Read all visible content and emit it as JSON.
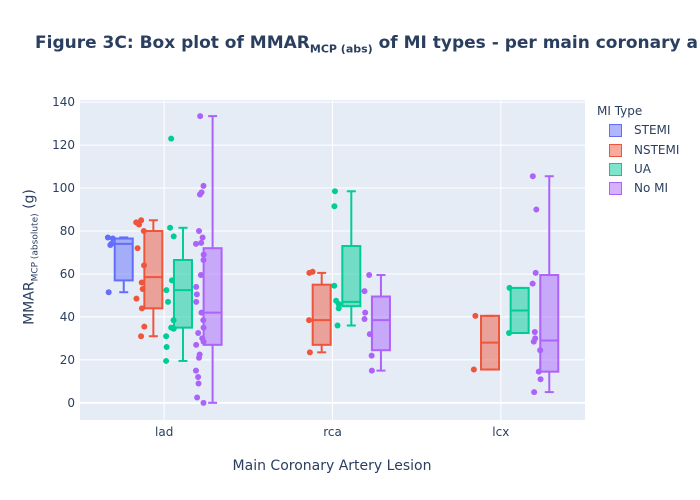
{
  "title": {
    "prefix": "Figure 3C: Box plot of MMAR",
    "sub": "MCP (abs)",
    "suffix": " of MI types - per main coronary a"
  },
  "axes": {
    "ylabel_main": "MMAR",
    "ylabel_sub": "MCP (absolute)",
    "ylabel_unit": " (g)",
    "xlabel": "Main Coronary Artery Lesion"
  },
  "legend": {
    "title": "MI Type",
    "items": [
      "STEMI",
      "NSTEMI",
      "UA",
      "No MI"
    ]
  },
  "colors": {
    "STEMI": "#636efa",
    "NSTEMI": "#ef553b",
    "UA": "#00cc96",
    "No MI": "#ab63fa",
    "plot_bg": "#e5ecf6",
    "text": "#2a3f5f"
  },
  "chart_data": {
    "type": "box",
    "title": "Figure 3C: Box plot of MMAR_MCP (abs) of MI types - per main coronary a",
    "xlabel": "Main Coronary Artery Lesion",
    "ylabel": "MMAR_MCP (absolute) (g)",
    "categories": [
      "lad",
      "rca",
      "lcx"
    ],
    "ylim": [
      -8,
      141
    ],
    "yticks": [
      0,
      20,
      40,
      60,
      80,
      100,
      120,
      140
    ],
    "grid": true,
    "legend_position": "right",
    "series": [
      {
        "name": "STEMI",
        "boxes": [
          {
            "category": "lad",
            "min": 51.5,
            "q1": 57,
            "median": 74,
            "q3": 76.5,
            "max": 77,
            "points": [
              77,
              76.5,
              74,
              73.5,
              51.5
            ]
          }
        ]
      },
      {
        "name": "NSTEMI",
        "boxes": [
          {
            "category": "lad",
            "min": 31,
            "q1": 44,
            "median": 58.5,
            "q3": 80,
            "max": 85,
            "points": [
              85,
              84,
              83,
              80,
              72,
              64,
              56,
              53,
              48.5,
              44,
              35.5,
              31
            ]
          },
          {
            "category": "rca",
            "min": 23.5,
            "q1": 27,
            "median": 38.5,
            "q3": 55,
            "max": 60.5,
            "points": [
              61,
              60.5,
              38.5,
              23.5
            ]
          },
          {
            "category": "lcx",
            "min": 15.5,
            "q1": 15.5,
            "median": 28,
            "q3": 40.5,
            "max": 40.5,
            "points": [
              40.5,
              15.5
            ]
          }
        ]
      },
      {
        "name": "UA",
        "boxes": [
          {
            "category": "lad",
            "min": 19.5,
            "q1": 35,
            "median": 52.5,
            "q3": 66.5,
            "max": 81.5,
            "points": [
              123,
              81.5,
              77.5,
              57,
              52.5,
              47,
              38.5,
              35,
              34.5,
              31,
              26,
              19.5
            ]
          },
          {
            "category": "rca",
            "min": 36,
            "q1": 45,
            "median": 47,
            "q3": 73,
            "max": 98.5,
            "points": [
              98.5,
              91.5,
              54.5,
              47.5,
              46,
              44,
              36
            ]
          },
          {
            "category": "lcx",
            "min": 32.5,
            "q1": 32.5,
            "median": 43,
            "q3": 53.5,
            "max": 53.5,
            "points": [
              53.5,
              32.5
            ]
          }
        ]
      },
      {
        "name": "No MI",
        "boxes": [
          {
            "category": "lad",
            "min": 0,
            "q1": 27,
            "median": 42,
            "q3": 72,
            "max": 133.5,
            "points": [
              133.5,
              101,
              98,
              97,
              80,
              77,
              74.5,
              74,
              69,
              66.5,
              59.5,
              54,
              50.5,
              47,
              42,
              38.5,
              35,
              32.5,
              30,
              28.5,
              27,
              22.5,
              21,
              15,
              12,
              9,
              2.5,
              0
            ]
          },
          {
            "category": "rca",
            "min": 15,
            "q1": 24.5,
            "median": 38.5,
            "q3": 49.5,
            "max": 59.5,
            "points": [
              59.5,
              52,
              42,
              39,
              32,
              22,
              15
            ]
          },
          {
            "category": "lcx",
            "min": 5,
            "q1": 14.5,
            "median": 29,
            "q3": 59.5,
            "max": 105.5,
            "points": [
              105.5,
              90,
              60.5,
              55.5,
              33,
              30,
              28.5,
              24.5,
              14.5,
              11,
              5
            ]
          }
        ]
      }
    ]
  }
}
